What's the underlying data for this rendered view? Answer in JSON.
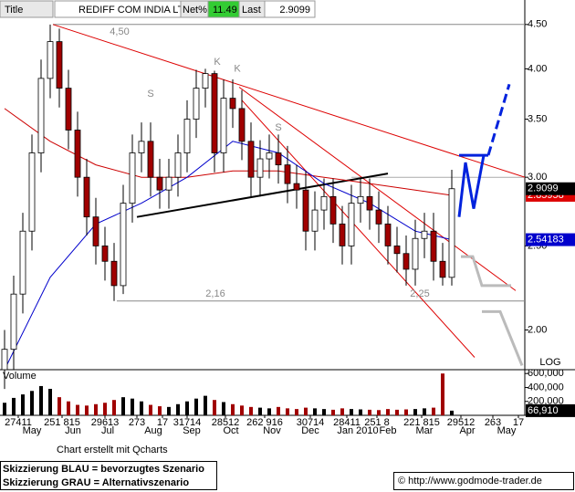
{
  "header": {
    "title_label": "Title",
    "name": "REDIFF COM INDIA LTD",
    "net_label": "Net%",
    "net_value": 11.49,
    "last_label": "Last"
  },
  "chart_data": {
    "type": "candlestick",
    "log_scale": true,
    "grid": false,
    "up_color": "#ffffff",
    "down_color": "#a00000",
    "open": [
      1.8,
      1.9,
      2.2,
      2.6,
      3.2,
      3.9,
      4.3,
      3.8,
      3.4,
      3.0,
      2.7,
      2.5,
      2.4,
      2.25,
      2.8,
      3.2,
      3.3,
      3.0,
      2.9,
      3.0,
      3.2,
      3.5,
      3.8,
      3.95,
      3.2,
      3.7,
      3.6,
      3.3,
      3.0,
      3.15,
      3.2,
      3.1,
      2.95,
      2.9,
      2.6,
      2.75,
      2.85,
      2.65,
      2.5,
      2.8,
      2.85,
      2.75,
      2.65,
      2.5,
      2.45,
      2.35,
      2.55,
      2.6,
      2.4,
      2.3
    ],
    "high": [
      2.0,
      2.31,
      2.73,
      3.36,
      4.1,
      4.5,
      4.45,
      3.99,
      3.57,
      3.15,
      2.84,
      2.63,
      2.52,
      2.94,
      3.36,
      3.47,
      3.47,
      3.15,
      3.15,
      3.36,
      3.68,
      3.99,
      4.0,
      3.98,
      3.89,
      3.89,
      3.78,
      3.47,
      3.31,
      3.36,
      3.36,
      3.26,
      3.1,
      3.05,
      2.89,
      2.99,
      2.99,
      2.78,
      2.94,
      2.99,
      2.99,
      2.89,
      2.78,
      2.63,
      2.57,
      2.68,
      2.73,
      2.73,
      2.52,
      3.06
    ],
    "low": [
      1.71,
      1.8,
      2.09,
      2.47,
      3.04,
      3.7,
      3.61,
      3.23,
      2.85,
      2.57,
      2.38,
      2.28,
      2.16,
      2.2,
      2.66,
      3.04,
      2.85,
      2.76,
      2.76,
      2.85,
      3.04,
      3.33,
      3.61,
      3.04,
      3.04,
      3.42,
      3.14,
      2.85,
      2.85,
      2.99,
      2.95,
      2.8,
      2.76,
      2.47,
      2.47,
      2.61,
      2.52,
      2.38,
      2.38,
      2.66,
      2.61,
      2.52,
      2.38,
      2.33,
      2.25,
      2.25,
      2.42,
      2.28,
      2.25,
      2.25
    ],
    "close": [
      1.9,
      2.2,
      2.6,
      3.2,
      3.9,
      4.3,
      3.8,
      3.4,
      3.0,
      2.7,
      2.5,
      2.4,
      2.25,
      2.8,
      3.2,
      3.3,
      3.0,
      2.9,
      3.0,
      3.2,
      3.5,
      3.8,
      3.95,
      3.2,
      3.7,
      3.6,
      3.3,
      3.0,
      3.15,
      3.2,
      3.1,
      2.95,
      2.9,
      2.6,
      2.75,
      2.85,
      2.65,
      2.5,
      2.8,
      2.85,
      2.75,
      2.65,
      2.5,
      2.45,
      2.35,
      2.55,
      2.6,
      2.4,
      2.3,
      2.9099
    ],
    "moving_averages": [
      {
        "color": "#cc0000",
        "x": [
          0,
          5,
          10,
          15,
          20,
          25,
          30,
          35,
          40,
          45,
          49
        ],
        "values": [
          3.6,
          3.3,
          3.1,
          3.0,
          3.0,
          3.05,
          3.05,
          3.0,
          2.95,
          2.9,
          2.85958
        ]
      },
      {
        "color": "#0000cc",
        "x": [
          0,
          5,
          10,
          15,
          20,
          25,
          30,
          35,
          40,
          45,
          49
        ],
        "values": [
          1.8,
          2.3,
          2.65,
          2.8,
          3.0,
          3.3,
          3.2,
          2.95,
          2.8,
          2.6,
          2.54183
        ]
      }
    ],
    "xlim": [
      -0.5,
      57
    ],
    "ylim": [
      1.8,
      4.575
    ],
    "yticks": [
      {
        "value": 2,
        "label": "2.00"
      },
      {
        "value": 2.5,
        "label": "2.50"
      },
      {
        "value": 3,
        "label": "3.00"
      },
      {
        "value": 3.5,
        "label": "3.50"
      },
      {
        "value": 4,
        "label": "4.00"
      },
      {
        "value": 4.5,
        "label": "4.50"
      }
    ],
    "scale_label": "LOG",
    "day_ticks": [
      {
        "value": 1.5,
        "label": "27411"
      },
      {
        "value": 6.3,
        "label": "251 815"
      },
      {
        "value": 11,
        "label": "29613"
      },
      {
        "value": 14.5,
        "label": "273"
      },
      {
        "value": 17.3,
        "label": "17"
      },
      {
        "value": 20,
        "label": "31714"
      },
      {
        "value": 24.2,
        "label": "28512"
      },
      {
        "value": 28.5,
        "label": "262 916"
      },
      {
        "value": 33.5,
        "label": "30714"
      },
      {
        "value": 37.5,
        "label": "28411"
      },
      {
        "value": 40.8,
        "label": "251 8"
      },
      {
        "value": 45.7,
        "label": "221 815"
      },
      {
        "value": 50,
        "label": "29512"
      },
      {
        "value": 53.5,
        "label": "263"
      },
      {
        "value": 56.3,
        "label": "17"
      }
    ],
    "month_ticks": [
      {
        "value": 3,
        "label": "May"
      },
      {
        "value": 7.5,
        "label": "Jun"
      },
      {
        "value": 11.3,
        "label": "Jul"
      },
      {
        "value": 16.3,
        "label": "Aug"
      },
      {
        "value": 20.5,
        "label": "Sep"
      },
      {
        "value": 24.8,
        "label": "Oct"
      },
      {
        "value": 29.3,
        "label": "Nov"
      },
      {
        "value": 33.5,
        "label": "Dec"
      },
      {
        "value": 38.7,
        "label": "Jan 2010"
      },
      {
        "value": 42,
        "label": "Feb"
      },
      {
        "value": 46,
        "label": "Mar"
      },
      {
        "value": 50.7,
        "label": "Apr"
      },
      {
        "value": 55,
        "label": "May"
      }
    ],
    "drawings": [
      {
        "color": "#888888",
        "width": 1,
        "dashed": false,
        "points": [
          [
            5.3,
            4.5
          ],
          [
            57,
            4.5
          ]
        ]
      },
      {
        "color": "#888888",
        "width": 1,
        "dashed": false,
        "points": [
          [
            12.3,
            2.16
          ],
          [
            57,
            2.16
          ]
        ]
      },
      {
        "color": "#aaaaaa",
        "width": 1,
        "dashed": false,
        "points": [
          [
            38,
            3.0
          ],
          [
            57,
            3.0
          ]
        ]
      },
      {
        "color": "#dd0000",
        "width": 1,
        "dashed": false,
        "points": [
          [
            5.3,
            4.5
          ],
          [
            57,
            3.0
          ]
        ]
      },
      {
        "color": "#dd0000",
        "width": 1,
        "dashed": false,
        "points": [
          [
            25.7,
            3.81
          ],
          [
            56,
            2.22
          ]
        ]
      },
      {
        "color": "#dd0000",
        "width": 1,
        "dashed": false,
        "points": [
          [
            26,
            3.68
          ],
          [
            51.5,
            1.86
          ]
        ]
      },
      {
        "color": "#000000",
        "width": 2,
        "dashed": false,
        "points": [
          [
            14.5,
            2.7
          ],
          [
            42,
            3.03
          ]
        ]
      },
      {
        "color": "#0022dd",
        "width": 3,
        "dashed": false,
        "points": [
          [
            49.8,
            2.7
          ],
          [
            50.5,
            3.12
          ],
          [
            51.4,
            2.76
          ],
          [
            52.5,
            3.18
          ]
        ]
      },
      {
        "color": "#0022dd",
        "width": 3,
        "dashed": false,
        "points": [
          [
            49.8,
            3.18
          ],
          [
            53,
            3.18
          ]
        ]
      },
      {
        "color": "#0022dd",
        "width": 3,
        "dashed": true,
        "points": [
          [
            53,
            3.18
          ],
          [
            55.3,
            3.84
          ]
        ]
      },
      {
        "color": "#bbbbbb",
        "width": 3,
        "dashed": false,
        "points": [
          [
            50,
            2.43
          ],
          [
            51.3,
            2.43
          ],
          [
            52.3,
            2.25
          ],
          [
            55.5,
            2.25
          ]
        ]
      },
      {
        "color": "#bbbbbb",
        "width": 3,
        "dashed": false,
        "points": [
          [
            52.3,
            2.1
          ],
          [
            54.3,
            2.1
          ],
          [
            56.7,
            1.82
          ]
        ]
      }
    ],
    "annotations": [
      {
        "text": "4,50",
        "x": 12.6,
        "y": 4.41
      },
      {
        "text": "2,16",
        "x": 23.1,
        "y": 2.2
      },
      {
        "text": "2,25",
        "x": 45.5,
        "y": 2.2
      },
      {
        "text": "S",
        "x": 16,
        "y": 3.74
      },
      {
        "text": "K",
        "x": 23.3,
        "y": 4.07
      },
      {
        "text": "K",
        "x": 25.5,
        "y": 4.0
      },
      {
        "text": "S",
        "x": 30,
        "y": 3.42
      }
    ],
    "volume": {
      "label": "Volume",
      "values": [
        180000,
        250000,
        300000,
        350000,
        420000,
        380000,
        260000,
        200000,
        150000,
        140000,
        160000,
        180000,
        220000,
        260000,
        240000,
        200000,
        150000,
        130000,
        120000,
        160000,
        200000,
        240000,
        280000,
        220000,
        190000,
        160000,
        140000,
        120000,
        110000,
        100000,
        120000,
        100000,
        90000,
        110000,
        100000,
        90000,
        80000,
        100000,
        90000,
        85000,
        80000,
        75000,
        90000,
        80000,
        85000,
        90000,
        100000,
        110000,
        600000,
        66910
      ],
      "last_label": "66,910",
      "ylim": [
        0,
        655000
      ],
      "yticks": [
        {
          "value": 200000,
          "label": "200,000"
        },
        {
          "value": 400000,
          "label": "400,000"
        },
        {
          "value": 600000,
          "label": "600,000"
        }
      ]
    }
  },
  "footer": {
    "credit": "Chart erstellt mit Qcharts",
    "legend_line_1": "Skizzierung BLAU = bevorzugtes Szenario",
    "legend_line_2": "Skizzierung GRAU = Alternativszenario",
    "copyright": "© http://www.godmode-trader.de"
  }
}
